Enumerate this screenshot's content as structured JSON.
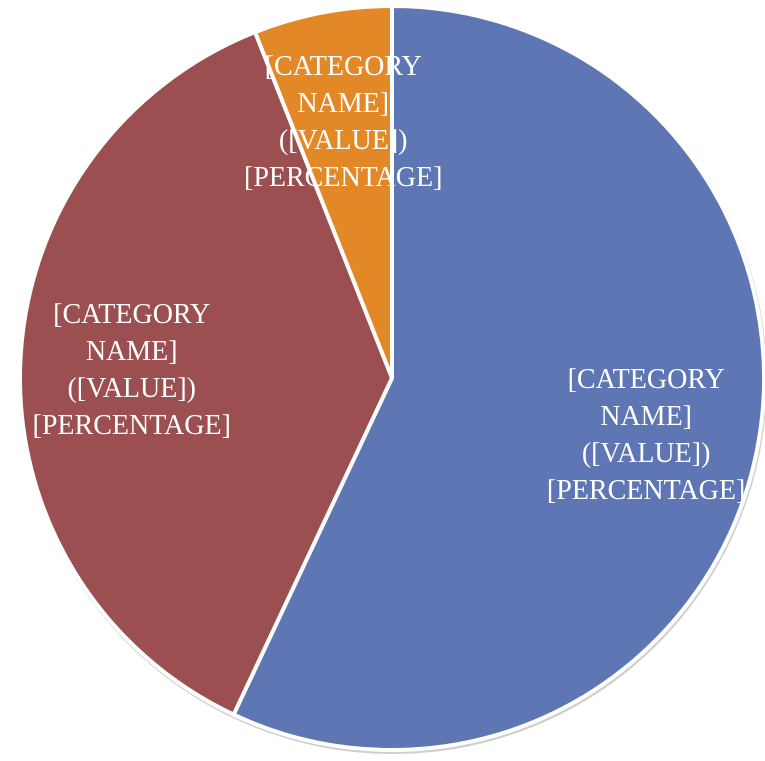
{
  "chart_data": {
    "type": "pie",
    "values": [
      57,
      37,
      6
    ],
    "colors": [
      "#5f76b5",
      "#9b4f50",
      "#e38826"
    ],
    "value_labels": [
      "[CATEGORY NAME] ([VALUE]) [PERCENTAGE]",
      "[CATEGORY NAME] ([VALUE]) [PERCENTAGE]",
      "[CATEGORY NAME] ([VALUE]) [PERCENTAGE]"
    ]
  }
}
